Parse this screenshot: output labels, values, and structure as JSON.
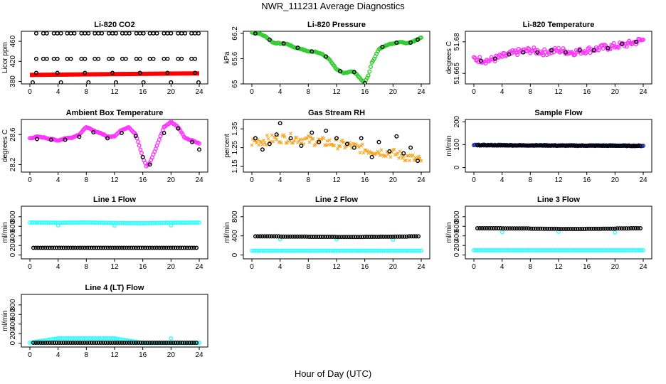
{
  "page": {
    "title": "NWR_111231  Average Diagnostics",
    "xlabel": "Hour of Day (UTC)"
  },
  "colors": {
    "black": "#000000",
    "red": "#ff0000",
    "green": "#33cc33",
    "magenta": "#ff33ff",
    "orange": "#f5a623",
    "blue": "#2233aa",
    "cyan": "#33ffff"
  },
  "chart_data": [
    {
      "id": "co2",
      "type": "scatter",
      "title": "Li-820 CO2",
      "ylabel": "Licor ppm",
      "xlim": [
        0,
        24
      ],
      "ylim": [
        375,
        480
      ],
      "xticks": [
        0,
        4,
        8,
        12,
        16,
        20,
        24
      ],
      "yticks": [
        380,
        420,
        460
      ],
      "series": [
        {
          "color": "red",
          "style": "line-thick",
          "x": [
            0,
            24
          ],
          "y": [
            393,
            396
          ]
        },
        {
          "color": "black",
          "style": "circle",
          "x": [
            0.9,
            1.9,
            2.4,
            3.4,
            3.9,
            4.4,
            5.3,
            5.8,
            6.3,
            7.3,
            7.8,
            8.3,
            9.2,
            9.7,
            10.2,
            11.2,
            11.7,
            12.2,
            13.1,
            13.6,
            14.1,
            15.1,
            15.6,
            16.1,
            17.0,
            17.5,
            18.0,
            19.0,
            19.5,
            20.0,
            21.0,
            21.5,
            22.0,
            22.9,
            23.4,
            23.9,
            0.9,
            1.9,
            2.4,
            3.4,
            3.9,
            5.3,
            5.8,
            7.3,
            7.8,
            9.2,
            9.7,
            11.2,
            11.7,
            13.1,
            13.6,
            15.1,
            15.6,
            17.0,
            17.5,
            19.0,
            19.5,
            21.0,
            21.5,
            22.9,
            23.4,
            0.9,
            3.9,
            7.8,
            11.7,
            15.6,
            19.5,
            23.4,
            0.4,
            4.4,
            8.3,
            12.2,
            16.1,
            20.0,
            23.9
          ],
          "y": [
            476,
            476,
            476,
            476,
            476,
            476,
            476,
            476,
            476,
            476,
            476,
            476,
            476,
            476,
            476,
            476,
            476,
            476,
            476,
            476,
            476,
            476,
            476,
            476,
            476,
            476,
            476,
            476,
            476,
            476,
            476,
            476,
            476,
            476,
            476,
            476,
            425,
            425,
            425,
            425,
            425,
            425,
            425,
            425,
            425,
            425,
            425,
            425,
            425,
            425,
            425,
            425,
            425,
            425,
            425,
            425,
            425,
            425,
            425,
            425,
            425,
            397,
            397,
            397,
            397,
            397,
            397,
            397,
            378,
            378,
            378,
            378,
            378,
            378,
            378
          ]
        }
      ]
    },
    {
      "id": "pressure",
      "type": "scatter",
      "title": "Li-820 Pressure",
      "ylabel": "kPa",
      "xlim": [
        0,
        24
      ],
      "ylim": [
        65.0,
        66.25
      ],
      "xticks": [
        0,
        4,
        8,
        12,
        16,
        20,
        24
      ],
      "yticks": [
        65.0,
        65.6,
        66.2
      ],
      "series": [
        {
          "color": "green",
          "style": "circle",
          "x": [
            0,
            1,
            2,
            3,
            4,
            5,
            6,
            7,
            8,
            9,
            10,
            11,
            12,
            13,
            14,
            14.5,
            15,
            15.5,
            16,
            16.5,
            17,
            18,
            19,
            20,
            21,
            22,
            23,
            24
          ],
          "y": [
            66.22,
            66.2,
            66.12,
            65.98,
            65.96,
            65.95,
            65.87,
            65.83,
            65.77,
            65.77,
            65.7,
            65.58,
            65.35,
            65.25,
            65.3,
            65.28,
            65.2,
            65.1,
            65.03,
            65.2,
            65.5,
            65.82,
            65.92,
            65.96,
            66.0,
            65.97,
            66.02,
            66.1
          ]
        },
        {
          "color": "black",
          "style": "circle",
          "x": [
            0.5,
            2.5,
            4.5,
            6.5,
            8.5,
            10.5,
            12.5,
            14.5,
            16.0,
            18.5,
            20.5,
            22.5,
            23.5
          ],
          "y": [
            66.2,
            66.05,
            65.96,
            65.86,
            65.77,
            65.65,
            65.3,
            65.28,
            65.02,
            65.88,
            65.98,
            65.98,
            66.05
          ]
        }
      ]
    },
    {
      "id": "temperature",
      "type": "scatter",
      "title": "Li-820 Temperature",
      "ylabel": "degrees C",
      "xlim": [
        0,
        24
      ],
      "ylim": [
        51.66,
        51.685
      ],
      "xticks": [
        0,
        4,
        8,
        12,
        16,
        20,
        24
      ],
      "yticks": [
        51.665,
        51.68
      ],
      "series": [
        {
          "color": "magenta",
          "style": "circle",
          "x": [
            0,
            2,
            4,
            6,
            8,
            10,
            12,
            14,
            16,
            18,
            20,
            22,
            24
          ],
          "y": [
            51.672,
            51.671,
            51.673,
            51.675,
            51.676,
            51.675,
            51.676,
            51.675,
            51.676,
            51.677,
            51.678,
            51.679,
            51.681
          ]
        },
        {
          "color": "black",
          "style": "circle",
          "x": [
            1,
            3,
            5,
            7,
            9,
            11,
            13,
            15,
            17,
            19,
            21,
            23
          ],
          "y": [
            51.671,
            51.672,
            51.674,
            51.675,
            51.675,
            51.676,
            51.675,
            51.676,
            51.676,
            51.677,
            51.679,
            51.68
          ]
        }
      ]
    },
    {
      "id": "ambient",
      "type": "scatter",
      "title": "Ambient Box Temperature",
      "ylabel": "degrees C",
      "xlim": [
        0,
        24
      ],
      "ylim": [
        28.1,
        28.8
      ],
      "xticks": [
        0,
        4,
        8,
        12,
        16,
        20,
        24
      ],
      "yticks": [
        28.2,
        28.6
      ],
      "series": [
        {
          "color": "magenta",
          "style": "circle",
          "x": [
            0,
            1,
            2,
            3,
            4,
            5,
            6,
            7,
            8,
            9,
            10,
            11,
            12,
            13,
            14,
            15,
            15.5,
            16,
            16.5,
            17,
            18,
            19,
            20,
            21,
            22,
            23,
            24
          ],
          "y": [
            28.55,
            28.57,
            28.56,
            28.54,
            28.52,
            28.55,
            28.56,
            28.6,
            28.7,
            28.65,
            28.62,
            28.57,
            28.58,
            28.66,
            28.7,
            28.6,
            28.45,
            28.3,
            28.18,
            28.22,
            28.45,
            28.7,
            28.77,
            28.7,
            28.55,
            28.52,
            28.48
          ]
        },
        {
          "color": "black",
          "style": "circle",
          "x": [
            1,
            3,
            5,
            7,
            9,
            11,
            13,
            15,
            16,
            17,
            19,
            21,
            23,
            24
          ],
          "y": [
            28.54,
            28.53,
            28.53,
            28.57,
            28.63,
            28.55,
            28.62,
            28.58,
            28.3,
            28.2,
            28.62,
            28.68,
            28.5,
            28.4
          ]
        }
      ]
    },
    {
      "id": "rh",
      "type": "scatter",
      "title": "Gas Stream RH",
      "ylabel": "percent",
      "xlim": [
        0,
        24
      ],
      "ylim": [
        1.12,
        1.4
      ],
      "xticks": [
        0,
        4,
        8,
        12,
        16,
        20,
        24
      ],
      "yticks": [
        1.15,
        1.25,
        1.35
      ],
      "series": [
        {
          "color": "orange",
          "style": "cross",
          "x": [
            0,
            2,
            4,
            6,
            8,
            10,
            12,
            14,
            16,
            18,
            20,
            22,
            24
          ],
          "y": [
            1.28,
            1.29,
            1.3,
            1.3,
            1.29,
            1.28,
            1.27,
            1.26,
            1.24,
            1.23,
            1.22,
            1.2,
            1.18
          ]
        },
        {
          "color": "black",
          "style": "circle",
          "x": [
            0.5,
            1.5,
            2.5,
            3.5,
            4.0,
            5.5,
            7.0,
            8.5,
            9.5,
            10.5,
            12.0,
            13.5,
            14.5,
            15.5,
            17.0,
            18.0,
            19.5,
            20.5,
            21.5,
            22.5,
            23.5
          ],
          "y": [
            1.3,
            1.24,
            1.27,
            1.32,
            1.38,
            1.3,
            1.26,
            1.33,
            1.28,
            1.34,
            1.3,
            1.27,
            1.25,
            1.3,
            1.2,
            1.28,
            1.23,
            1.31,
            1.22,
            1.25,
            1.18
          ]
        }
      ]
    },
    {
      "id": "sample",
      "type": "scatter",
      "title": "Sample Flow",
      "ylabel": "ml/min",
      "xlim": [
        0,
        24
      ],
      "ylim": [
        -20,
        210
      ],
      "xticks": [
        0,
        4,
        8,
        12,
        16,
        20,
        24
      ],
      "yticks": [
        0,
        100,
        200
      ],
      "series": [
        {
          "color": "blue",
          "style": "circle",
          "x": [
            0,
            2,
            4,
            6,
            8,
            10,
            12,
            14,
            16,
            18,
            20,
            22,
            24
          ],
          "y": [
            98,
            98,
            98,
            97,
            97,
            97,
            96,
            96,
            96,
            96,
            96,
            95,
            95
          ]
        },
        {
          "color": "black",
          "style": "circle",
          "x": [
            0.5,
            2.5,
            4.5,
            6.5,
            8.5,
            10.5,
            12.5,
            14.5,
            16.5,
            18.5,
            20.5,
            22.5,
            23.8
          ],
          "y": [
            97,
            97,
            97,
            97,
            97,
            96,
            96,
            96,
            96,
            95,
            95,
            94,
            93
          ]
        }
      ]
    },
    {
      "id": "line1",
      "type": "scatter",
      "title": "Line 1 Flow",
      "ylabel": "ml/min",
      "xlim": [
        0,
        24
      ],
      "ylim": [
        -80,
        1020
      ],
      "xticks": [
        0,
        4,
        8,
        12,
        16,
        20,
        24
      ],
      "yticks": [
        0,
        200,
        400,
        600,
        800
      ],
      "series": [
        {
          "color": "cyan",
          "style": "circle",
          "x": [
            0,
            4,
            8,
            12,
            16,
            20,
            24,
            4,
            12,
            20
          ],
          "y": [
            680,
            675,
            680,
            670,
            665,
            675,
            678,
            620,
            615,
            620
          ]
        },
        {
          "color": "black",
          "style": "circle",
          "x": [
            0.5,
            2.5,
            4.5,
            6.5,
            8.5,
            10.5,
            12.5,
            14.5,
            16.5,
            18.5,
            20.5,
            22.5,
            23.8
          ],
          "y": [
            150,
            150,
            150,
            150,
            150,
            150,
            150,
            150,
            150,
            150,
            150,
            150,
            150
          ]
        }
      ]
    },
    {
      "id": "line2",
      "type": "scatter",
      "title": "Line 2 Flow",
      "ylabel": "ml/min",
      "xlim": [
        0,
        24
      ],
      "ylim": [
        -80,
        1020
      ],
      "xticks": [
        0,
        4,
        8,
        12,
        16,
        20,
        24
      ],
      "yticks": [
        0,
        400,
        800
      ],
      "series": [
        {
          "color": "cyan",
          "style": "circle",
          "x": [
            0,
            4,
            8,
            12,
            16,
            20,
            24,
            4,
            12,
            20
          ],
          "y": [
            90,
            90,
            90,
            90,
            90,
            90,
            90,
            330,
            330,
            320
          ]
        },
        {
          "color": "black",
          "style": "circle",
          "x": [
            0.5,
            2.5,
            4.5,
            6.5,
            8.5,
            10.5,
            12.5,
            14.5,
            16.5,
            18.5,
            20.5,
            22.5,
            23.8
          ],
          "y": [
            390,
            390,
            385,
            385,
            380,
            380,
            378,
            378,
            380,
            382,
            385,
            390,
            390
          ]
        }
      ]
    },
    {
      "id": "line3",
      "type": "scatter",
      "title": "Line 3 Flow",
      "ylabel": "ml/min",
      "xlim": [
        0,
        24
      ],
      "ylim": [
        -80,
        1020
      ],
      "xticks": [
        0,
        4,
        8,
        12,
        16,
        20,
        24
      ],
      "yticks": [
        0,
        200,
        400,
        600,
        800
      ],
      "series": [
        {
          "color": "cyan",
          "style": "circle",
          "x": [
            0,
            4,
            8,
            12,
            16,
            20,
            24,
            4,
            12,
            20
          ],
          "y": [
            100,
            100,
            100,
            100,
            100,
            100,
            100,
            480,
            485,
            470
          ]
        },
        {
          "color": "black",
          "style": "circle",
          "x": [
            0.5,
            2.5,
            4.5,
            6.5,
            8.5,
            10.5,
            12.5,
            14.5,
            16.5,
            18.5,
            20.5,
            22.5,
            23.8
          ],
          "y": [
            560,
            560,
            555,
            555,
            550,
            548,
            545,
            545,
            548,
            550,
            555,
            560,
            560
          ]
        }
      ]
    },
    {
      "id": "line4",
      "type": "scatter",
      "title": "Line 4 (LT) Flow",
      "ylabel": "ml/min",
      "xlim": [
        0,
        24
      ],
      "ylim": [
        -80,
        1020
      ],
      "xticks": [
        0,
        4,
        8,
        12,
        16,
        20,
        24
      ],
      "yticks": [
        0,
        200,
        400,
        600,
        800
      ],
      "series": [
        {
          "color": "cyan",
          "style": "circle",
          "x": [
            0,
            4,
            12,
            20,
            0,
            8,
            16,
            24
          ],
          "y": [
            10,
            100,
            100,
            100,
            5,
            5,
            5,
            5
          ]
        },
        {
          "color": "black",
          "style": "circle",
          "x": [
            0.5,
            2.5,
            4.5,
            6.5,
            8.5,
            10.5,
            12.5,
            14.5,
            16.5,
            18.5,
            20.5,
            22.5,
            23.8
          ],
          "y": [
            10,
            10,
            10,
            10,
            10,
            10,
            10,
            10,
            10,
            10,
            10,
            10,
            10
          ]
        }
      ]
    }
  ]
}
